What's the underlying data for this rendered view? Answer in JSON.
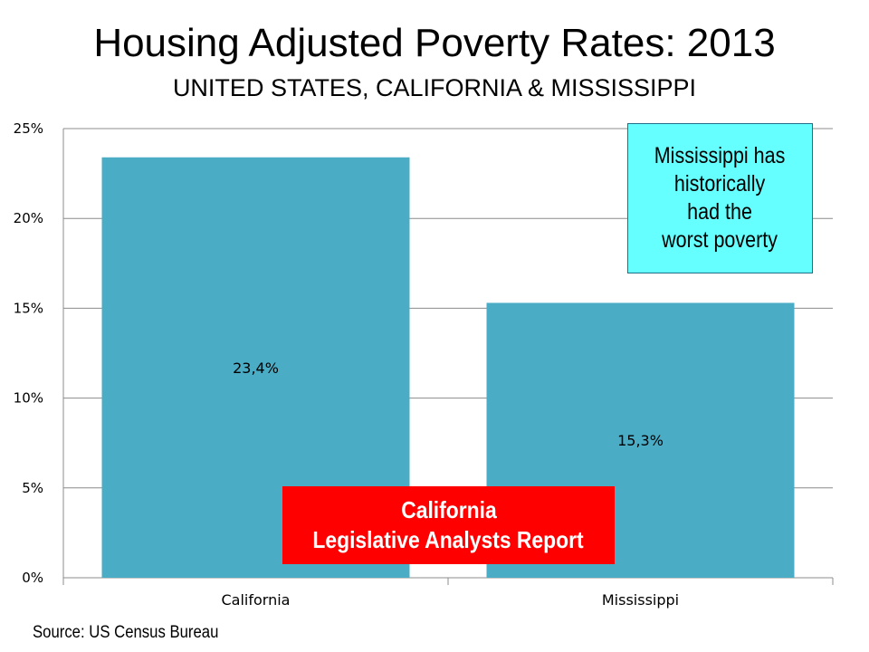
{
  "header": {
    "title": "Housing Adjusted Poverty Rates: 2013",
    "subtitle": "UNITED STATES, CALIFORNIA & MISSISSIPPI"
  },
  "chart_data": {
    "type": "bar",
    "categories": [
      "California",
      "Mississippi"
    ],
    "values": [
      23.4,
      15.3
    ],
    "data_labels": [
      "23,4%",
      "15,3%"
    ],
    "ylim": [
      0,
      25
    ],
    "yticks": [
      0,
      5,
      10,
      15,
      20,
      25
    ],
    "ytick_labels": [
      "0%",
      "5%",
      "10%",
      "15%",
      "20%",
      "25%"
    ],
    "grid": true,
    "bar_color": "#4bacc6",
    "legend": "none"
  },
  "callout": {
    "text": "Mississippi has\nhistorically\nhad the\nworst poverty",
    "background": "#66ffff"
  },
  "report_box": {
    "line1": "California",
    "line2": "Legislative Analysts Report",
    "background": "#ff0000"
  },
  "footer": {
    "source": "Source: US Census Bureau"
  }
}
